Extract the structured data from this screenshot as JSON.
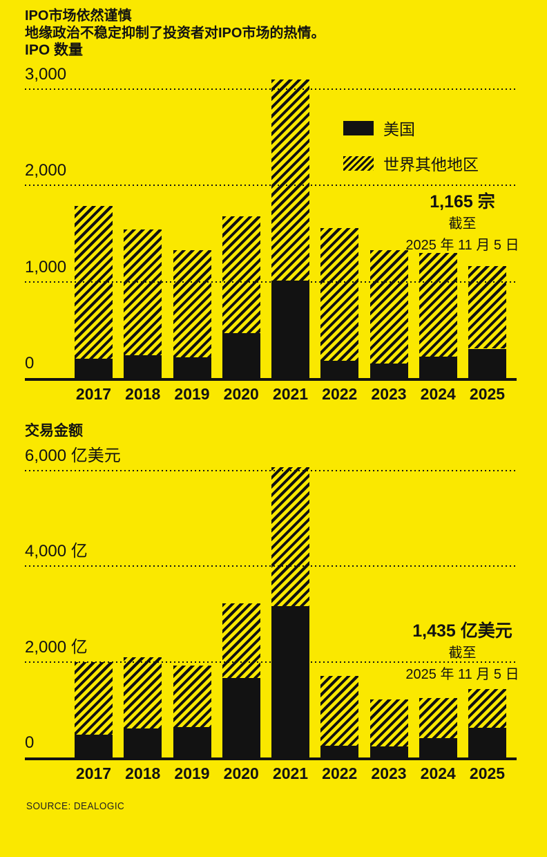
{
  "page": {
    "title": "IPO市场依然谨慎",
    "subtitle": "地缘政治不稳定抑制了投资者对IPO市场的热情。",
    "source": "SOURCE: DEALOGIC",
    "colors": {
      "background": "#FAE800",
      "ink": "#121212"
    }
  },
  "legend": {
    "position": "inside top-right of first chart",
    "items": [
      {
        "label": "美国",
        "swatch": "solid"
      },
      {
        "label": "世界其他地区",
        "swatch": "hatched"
      }
    ]
  },
  "chart_data": [
    {
      "type": "bar",
      "stacked": true,
      "title": "IPO 数量",
      "unit": "宗",
      "categories": [
        "2017",
        "2018",
        "2019",
        "2020",
        "2021",
        "2022",
        "2023",
        "2024",
        "2025"
      ],
      "series": [
        {
          "name": "美国",
          "pattern": "solid",
          "values": [
            200,
            240,
            215,
            465,
            1010,
            180,
            150,
            225,
            305
          ]
        },
        {
          "name": "世界其他地区",
          "pattern": "hatched",
          "values": [
            1590,
            1305,
            1115,
            1215,
            2090,
            1375,
            1180,
            1075,
            860
          ]
        }
      ],
      "totals": [
        1790,
        1545,
        1330,
        1680,
        3100,
        1555,
        1330,
        1300,
        1165
      ],
      "ylim": [
        0,
        3000
      ],
      "yticks": [
        {
          "value": 3000,
          "label": "3,000"
        },
        {
          "value": 2000,
          "label": "2,000"
        },
        {
          "value": 1000,
          "label": "1,000"
        },
        {
          "value": 0,
          "label": "0"
        }
      ],
      "grid": "dotted horizontal",
      "annotation": {
        "line1": "1,165 宗",
        "line2": "截至",
        "line3": "2025 年 11 月 5 日"
      }
    },
    {
      "type": "bar",
      "stacked": true,
      "title": "交易金额",
      "unit": "亿美元",
      "categories": [
        "2017",
        "2018",
        "2019",
        "2020",
        "2021",
        "2022",
        "2023",
        "2024",
        "2025"
      ],
      "series": [
        {
          "name": "美国",
          "pattern": "solid",
          "values": [
            480,
            605,
            635,
            1665,
            3160,
            250,
            230,
            400,
            620
          ]
        },
        {
          "name": "世界其他地区",
          "pattern": "hatched",
          "values": [
            1510,
            1495,
            1295,
            1565,
            2910,
            1460,
            980,
            840,
            815
          ]
        }
      ],
      "totals": [
        1990,
        2100,
        1930,
        3230,
        6070,
        1710,
        1210,
        1240,
        1435
      ],
      "ylim": [
        0,
        6000
      ],
      "yticks": [
        {
          "value": 6000,
          "label": "6,000 亿美元"
        },
        {
          "value": 4000,
          "label": "4,000 亿"
        },
        {
          "value": 2000,
          "label": "2,000 亿"
        },
        {
          "value": 0,
          "label": "0"
        }
      ],
      "grid": "dotted horizontal",
      "annotation": {
        "line1": "1,435 亿美元",
        "line2": "截至",
        "line3": "2025 年 11 月 5 日"
      }
    }
  ]
}
